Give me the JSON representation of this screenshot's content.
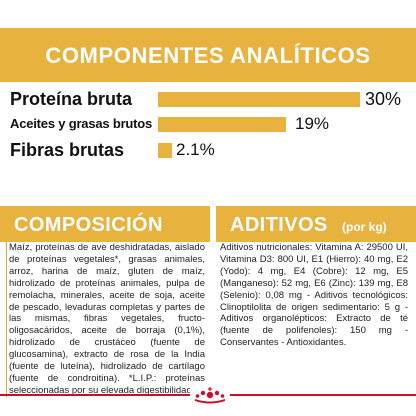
{
  "header": {
    "title": "COMPONENTES ANALÍTICOS"
  },
  "analytics": [
    {
      "label": "Proteína bruta",
      "value_text": "30%",
      "value": 30
    },
    {
      "label": "Aceites y grasas brutos",
      "value_text": "19%",
      "value": 19
    },
    {
      "label": "Fibras brutas",
      "value_text": "2.1%",
      "value": 2.1
    }
  ],
  "composicion": {
    "title": "COMPOSICIÓN",
    "text": "Maíz, proteínas de ave deshidratadas, aislado de proteínas vegetales*, grasas animales, arroz, harina de maíz, gluten de maíz, hidrolizado de proteínas animales, pulpa de remolacha, minerales, aceite de soja, aceite de pescado, levaduras completas y partes de las mismas, fibras vegetales, fructo-oligosacáridos, aceite de borraja (0,1%), hidrolizado de crustáceo (fuente de glucosamina), extracto de rosa de la India (fuente de luteína), hidrolizado de cartílago (fuente de condroitina). *L.I.P.: proteínas seleccionadas por su elevada digestibilidad."
  },
  "aditivos": {
    "title": "ADITIVOS",
    "subtitle": "(por kg)",
    "text": "Aditivos nutricionales: Vitamina A: 29500 UI, Vitamina D3: 800 UI, E1 (Hierro): 40 mg, E2 (Yodo): 4 mg, E4 (Cobre): 12 mg, E5 (Manganeso): 52 mg, E6 (Zinc): 139 mg, E8 (Selenio): 0,08 mg - Aditivos tecnológicos: Clinoptilolita de origen sedimentario: 5 g - Aditivos organolépticos: Extracto de té (fuente de polifenoles): 150 mg - Conservantes - Antioxidantes."
  },
  "colors": {
    "gold": "#e7b33e",
    "brand_red": "#c8102e"
  },
  "logo": {
    "name": "royal-canin-crown-logo"
  }
}
